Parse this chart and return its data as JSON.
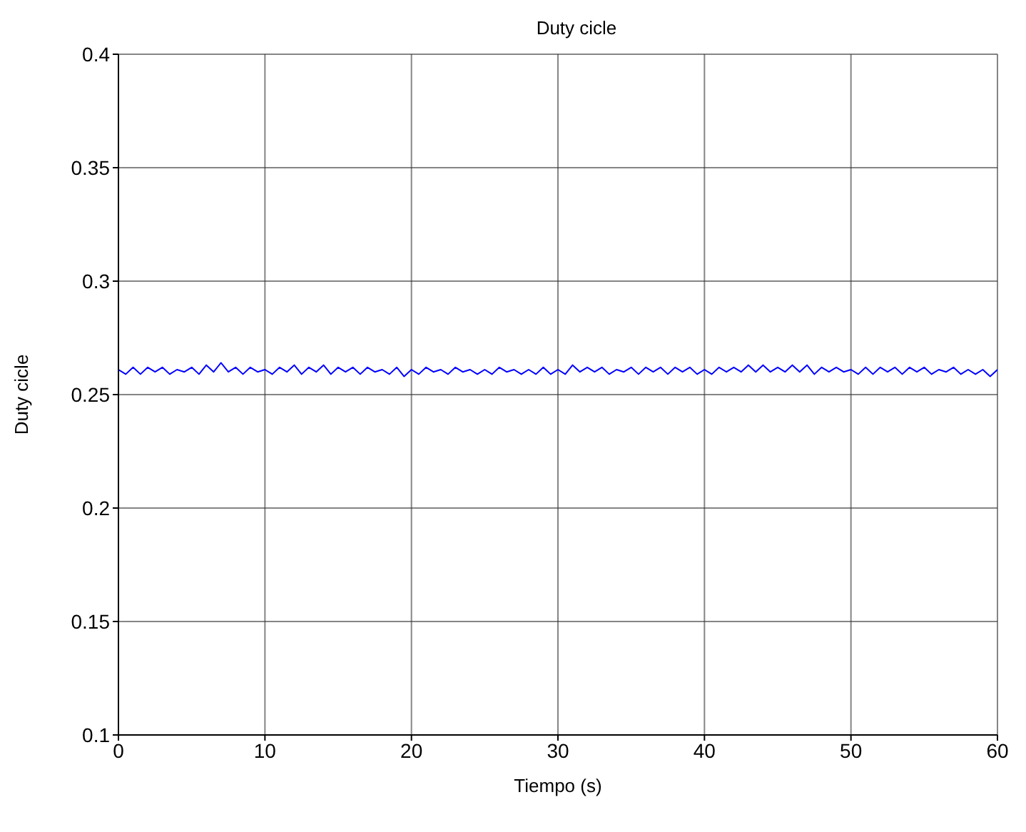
{
  "chart_data": {
    "type": "line",
    "title": "Duty cicle",
    "xlabel": "Tiempo (s)",
    "ylabel": "Duty cicle",
    "xlim": [
      0,
      60
    ],
    "xticks": [
      0,
      10,
      20,
      30,
      40,
      50,
      60
    ],
    "ylim": [
      0.1,
      0.4
    ],
    "yticks": [
      0.1,
      0.15,
      0.2,
      0.25,
      0.3,
      0.35,
      0.4
    ],
    "grid": true,
    "marker": "none",
    "line_style": "solid",
    "x": [
      0,
      0.5,
      1,
      1.5,
      2,
      2.5,
      3,
      3.5,
      4,
      4.5,
      5,
      5.5,
      6,
      6.5,
      7,
      7.5,
      8,
      8.5,
      9,
      9.5,
      10,
      10.5,
      11,
      11.5,
      12,
      12.5,
      13,
      13.5,
      14,
      14.5,
      15,
      15.5,
      16,
      16.5,
      17,
      17.5,
      18,
      18.5,
      19,
      19.5,
      20,
      20.5,
      21,
      21.5,
      22,
      22.5,
      23,
      23.5,
      24,
      24.5,
      25,
      25.5,
      26,
      26.5,
      27,
      27.5,
      28,
      28.5,
      29,
      29.5,
      30,
      30.5,
      31,
      31.5,
      32,
      32.5,
      33,
      33.5,
      34,
      34.5,
      35,
      35.5,
      36,
      36.5,
      37,
      37.5,
      38,
      38.5,
      39,
      39.5,
      40,
      40.5,
      41,
      41.5,
      42,
      42.5,
      43,
      43.5,
      44,
      44.5,
      45,
      45.5,
      46,
      46.5,
      47,
      47.5,
      48,
      48.5,
      49,
      49.5,
      50,
      50.5,
      51,
      51.5,
      52,
      52.5,
      53,
      53.5,
      54,
      54.5,
      55,
      55.5,
      56,
      56.5,
      57,
      57.5,
      58,
      58.5,
      59,
      59.5,
      60
    ],
    "series": [
      {
        "color": "#0000ff",
        "values": [
          0.261,
          0.259,
          0.262,
          0.259,
          0.262,
          0.26,
          0.262,
          0.259,
          0.261,
          0.26,
          0.262,
          0.259,
          0.263,
          0.26,
          0.264,
          0.26,
          0.262,
          0.259,
          0.262,
          0.26,
          0.261,
          0.259,
          0.262,
          0.26,
          0.263,
          0.259,
          0.262,
          0.26,
          0.263,
          0.259,
          0.262,
          0.26,
          0.262,
          0.259,
          0.262,
          0.26,
          0.261,
          0.259,
          0.262,
          0.258,
          0.261,
          0.259,
          0.262,
          0.26,
          0.261,
          0.259,
          0.262,
          0.26,
          0.261,
          0.259,
          0.261,
          0.259,
          0.262,
          0.26,
          0.261,
          0.259,
          0.261,
          0.259,
          0.262,
          0.259,
          0.261,
          0.259,
          0.263,
          0.26,
          0.262,
          0.26,
          0.262,
          0.259,
          0.261,
          0.26,
          0.262,
          0.259,
          0.262,
          0.26,
          0.262,
          0.259,
          0.262,
          0.26,
          0.262,
          0.259,
          0.261,
          0.259,
          0.262,
          0.26,
          0.262,
          0.26,
          0.263,
          0.26,
          0.263,
          0.26,
          0.262,
          0.26,
          0.263,
          0.26,
          0.263,
          0.259,
          0.262,
          0.26,
          0.262,
          0.26,
          0.261,
          0.259,
          0.262,
          0.259,
          0.262,
          0.26,
          0.262,
          0.259,
          0.262,
          0.26,
          0.262,
          0.259,
          0.261,
          0.26,
          0.262,
          0.259,
          0.261,
          0.259,
          0.261,
          0.258,
          0.261
        ]
      }
    ]
  }
}
